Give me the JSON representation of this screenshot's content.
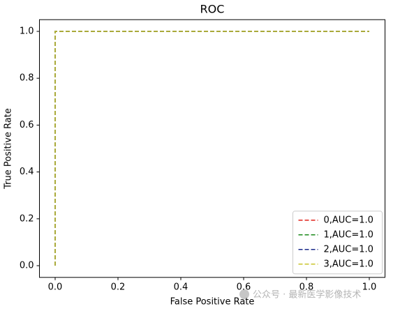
{
  "chart_data": {
    "type": "line",
    "title": "ROC",
    "xlabel": "False Positive Rate",
    "ylabel": "True Positive Rate",
    "x": [
      0,
      0,
      1
    ],
    "series": [
      {
        "name": "0,AUC=1.0",
        "color": "#e0201a",
        "values": [
          0,
          1,
          1
        ]
      },
      {
        "name": "1,AUC=1.0",
        "color": "#1a8a1a",
        "values": [
          0,
          1,
          1
        ]
      },
      {
        "name": "2,AUC=1.0",
        "color": "#1a2a8a",
        "values": [
          0,
          1,
          1
        ]
      },
      {
        "name": "3,AUC=1.0",
        "color": "#c8c42a",
        "values": [
          0,
          1,
          1
        ]
      }
    ],
    "xlim": [
      -0.05,
      1.05
    ],
    "ylim": [
      -0.05,
      1.05
    ],
    "xticks": [
      {
        "value": 0,
        "label": "0.0"
      },
      0.2,
      0.4,
      0.6,
      0.8,
      {
        "value": 1,
        "label": "1.0"
      }
    ],
    "yticks": [
      {
        "value": 0,
        "label": "0.0"
      },
      0.2,
      0.4,
      0.6,
      0.8,
      {
        "value": 1,
        "label": "1.0"
      }
    ],
    "grid": false,
    "legend": "lower right",
    "dashed": true
  },
  "watermark": "公众号 · 最新医学影像技术"
}
